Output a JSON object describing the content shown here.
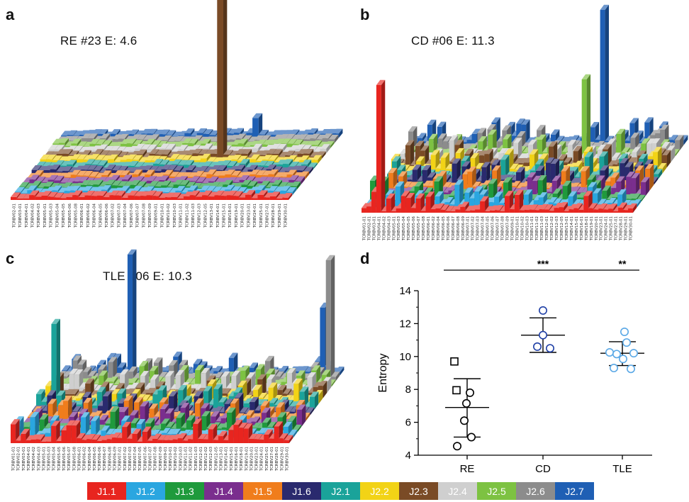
{
  "panels": {
    "a": {
      "letter": "a",
      "title": "RE #23  E: 4.6"
    },
    "b": {
      "letter": "b",
      "title": "CD #06 E: 11.3"
    },
    "c": {
      "letter": "c",
      "title": "TLE #06  E: 10.3"
    },
    "d": {
      "letter": "d"
    }
  },
  "trbv_labels_a": [
    "TCRBV02-01",
    "TCRBV03-01",
    "TCRBV04-01",
    "TCRBV04-02",
    "TCRBV04-03",
    "TCRBV05-01",
    "TCRBV05-03",
    "TCRBV05-04",
    "TCRBV05-05",
    "TCRBV05-06",
    "TCRBV05-08",
    "TCRBV06-01",
    "TCRBV06-02",
    "TCRBV06-04",
    "TCRBV06-05",
    "TCRBV06-06",
    "TCRBV07-02",
    "TCRBV07-03",
    "TCRBV07-04",
    "TCRBV07-06",
    "TCRBV07-07",
    "TCRBV07-08",
    "TCRBV07-09",
    "TCRBV09-01",
    "TCRBV10-01",
    "TCRBV10-02",
    "TCRBV10-03",
    "TCRBV11-01",
    "TCRBV11-02",
    "TCRBV11-03",
    "TCRBV12-03",
    "TCRBV12-05",
    "TCRBV13-01",
    "TCRBV14-01",
    "TCRBV15-01",
    "TCRBV18-01",
    "TCRBV19-01",
    "TCRBV20-01",
    "TCRBV23-01",
    "TCRBV24-01",
    "TCRBV25-01",
    "TCRBV27-01",
    "TCRBV28-01",
    "TCRBV29-01",
    "TCRBV30-01"
  ],
  "trbv_labels_b": [
    "TCRBV01-01",
    "TCRBV02-01",
    "TCRBV03-01",
    "TCRBV04-01",
    "TCRBV04-02",
    "TCRBV04-03",
    "TCRBV05-01",
    "TCRBV05-03",
    "TCRBV05-04",
    "TCRBV05-05",
    "TCRBV05-06",
    "TCRBV05-07",
    "TCRBV05-08",
    "TCRBV06-01",
    "TCRBV06-02",
    "TCRBV06-04",
    "TCRBV06-05",
    "TCRBV06-06",
    "TCRBV06-07",
    "TCRBV06-08",
    "TCRBV06-09",
    "TCRBV07-01",
    "TCRBV07-02",
    "TCRBV07-03",
    "TCRBV07-04",
    "TCRBV07-05",
    "TCRBV07-06",
    "TCRBV07-07",
    "TCRBV07-08",
    "TCRBV07-09",
    "TCRBV09-01",
    "TCRBV10-01",
    "TCRBV10-02",
    "TCRBV10-03",
    "TCRBV11-01",
    "TCRBV11-02",
    "TCRBV11-03",
    "TCRBV12-01",
    "TCRBV12-02",
    "TCRBV12-03",
    "TCRBV12-05",
    "TCRBV13-01",
    "TCRBV14-01",
    "TCRBV15-01",
    "TCRBV16-01",
    "TCRBV18-01",
    "TCRBV19-01",
    "TCRBV20-01",
    "TCRBV23-01",
    "TCRBV24-01",
    "TCRBV25-01",
    "TCRBV27-01",
    "TCRBV28-01",
    "TCRBV29-01",
    "TCRBV30-01"
  ],
  "trbv_labels_c": [
    "TCRBV01-01",
    "TCRBV02-01",
    "TCRBV03-01",
    "TCRBV04-01",
    "TCRBV04-02",
    "TCRBV04-03",
    "TCRBV05-01",
    "TCRBV05-03",
    "TCRBV05-04",
    "TCRBV05-05",
    "TCRBV05-06",
    "TCRBV05-07",
    "TCRBV05-08",
    "TCRBV06-01",
    "TCRBV06-02",
    "TCRBV06-04",
    "TCRBV06-05",
    "TCRBV06-06",
    "TCRBV06-07",
    "TCRBV06-08",
    "TCRBV06-09",
    "TCRBV07-01",
    "TCRBV07-02",
    "TCRBV07-03",
    "TCRBV07-04",
    "TCRBV07-05",
    "TCRBV07-06",
    "TCRBV07-07",
    "TCRBV07-08",
    "TCRBV07-09",
    "TCRBV09-01",
    "TCRBV10-01",
    "TCRBV10-02",
    "TCRBV10-03",
    "TCRBV11-01",
    "TCRBV11-02",
    "TCRBV11-03",
    "TCRBV12-01",
    "TCRBV12-02",
    "TCRBV12-03",
    "TCRBV12-05",
    "TCRBV13-01",
    "TCRBV14-01",
    "TCRBV15-01",
    "TCRBV16-01",
    "TCRBV18-01",
    "TCRBV19-01",
    "TCRBV20-01",
    "TCRBV23-01",
    "TCRBV24-01",
    "TCRBV25-01",
    "TCRBV27-01",
    "TCRBV28-01",
    "TCRBV29-01",
    "TCRBV30-01"
  ],
  "legend": [
    {
      "label": "J1.1",
      "color": "#e8251f"
    },
    {
      "label": "J1.2",
      "color": "#2aa6e0"
    },
    {
      "label": "J1.3",
      "color": "#1f9a3c"
    },
    {
      "label": "J1.4",
      "color": "#7a2e8e"
    },
    {
      "label": "J1.5",
      "color": "#f07d1c"
    },
    {
      "label": "J1.6",
      "color": "#2a2a6e"
    },
    {
      "label": "J2.1",
      "color": "#1aa39a"
    },
    {
      "label": "J2.2",
      "color": "#f2d316"
    },
    {
      "label": "J2.3",
      "color": "#7a4b26"
    },
    {
      "label": "J2.4",
      "color": "#cfcfcf"
    },
    {
      "label": "J2.5",
      "color": "#7dc242"
    },
    {
      "label": "J2.6",
      "color": "#8c8c8c"
    },
    {
      "label": "J2.7",
      "color": "#1f5fb4"
    }
  ],
  "chart_data": [
    {
      "panel": "a",
      "type": "bar",
      "title": "RE #23  E: 4.6",
      "note": "3D bar surface of TRBV (x) by TRBJ (depth) usage",
      "dominant_bars": [
        {
          "trbv": "TCRBV11-02",
          "trbj": "J2.3",
          "relative_height": 1.0
        },
        {
          "trbv": "TCRBV12-05",
          "trbj": "J2.7",
          "relative_height": 0.18
        }
      ]
    },
    {
      "panel": "b",
      "type": "bar",
      "title": "CD #06 E: 11.3",
      "dominant_bars": [
        {
          "trbv": "TCRBV12-02",
          "trbj": "J2.7",
          "relative_height": 1.0
        },
        {
          "trbv": "TCRBV04-02",
          "trbj": "J1.1",
          "relative_height": 0.75
        },
        {
          "trbv": "TCRBV11-03",
          "trbj": "J2.5",
          "relative_height": 0.6
        }
      ]
    },
    {
      "panel": "c",
      "type": "bar",
      "title": "TLE #06  E: 10.3",
      "dominant_bars": [
        {
          "trbv": "TCRBV05-06",
          "trbj": "J2.7",
          "relative_height": 1.0
        },
        {
          "trbv": "TCRBV29-01",
          "trbj": "J2.6",
          "relative_height": 1.0
        },
        {
          "trbv": "TCRBV27-01",
          "trbj": "J2.7",
          "relative_height": 0.65
        },
        {
          "trbv": "TCRBV03-01",
          "trbj": "J2.1",
          "relative_height": 0.6
        }
      ]
    },
    {
      "panel": "d",
      "type": "scatter",
      "ylabel": "Entropy",
      "xlabel": "",
      "categories": [
        "RE",
        "CD",
        "TLE"
      ],
      "ylim": [
        4,
        14
      ],
      "yticks": [
        4,
        6,
        8,
        10,
        12,
        14
      ],
      "groups": [
        {
          "name": "RE",
          "mean": 6.9,
          "sd_low": 5.1,
          "sd_high": 8.65,
          "points": [
            {
              "y": 9.7,
              "marker": "square"
            },
            {
              "y": 7.95,
              "marker": "square"
            },
            {
              "y": 7.8,
              "marker": "circle"
            },
            {
              "y": 7.15,
              "marker": "circle"
            },
            {
              "y": 6.1,
              "marker": "circle"
            },
            {
              "y": 5.1,
              "marker": "circle"
            },
            {
              "y": 4.55,
              "marker": "circle"
            }
          ],
          "color": "#000000"
        },
        {
          "name": "CD",
          "mean": 11.3,
          "sd_low": 10.25,
          "sd_high": 12.35,
          "points": [
            {
              "y": 12.8,
              "marker": "circle"
            },
            {
              "y": 11.3,
              "marker": "circle"
            },
            {
              "y": 10.6,
              "marker": "circle"
            },
            {
              "y": 10.5,
              "marker": "circle"
            }
          ],
          "color": "#1f3fa6"
        },
        {
          "name": "TLE",
          "mean": 10.2,
          "sd_low": 9.45,
          "sd_high": 10.9,
          "points": [
            {
              "y": 11.5,
              "marker": "circle"
            },
            {
              "y": 10.85,
              "marker": "circle"
            },
            {
              "y": 10.25,
              "marker": "circle"
            },
            {
              "y": 10.2,
              "marker": "circle"
            },
            {
              "y": 10.15,
              "marker": "circle"
            },
            {
              "y": 9.85,
              "marker": "circle"
            },
            {
              "y": 9.3,
              "marker": "circle"
            },
            {
              "y": 9.25,
              "marker": "circle"
            }
          ],
          "color": "#5aa8e6"
        }
      ],
      "annotations": [
        {
          "text": "***",
          "category": "CD"
        },
        {
          "text": "**",
          "category": "TLE"
        }
      ]
    }
  ]
}
